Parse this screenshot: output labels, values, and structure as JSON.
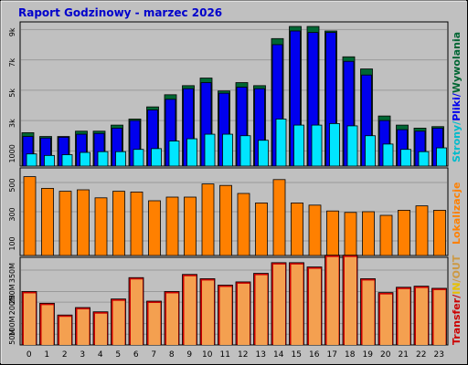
{
  "title": "Raport Godzinowy -  marzec 2026",
  "colors": {
    "background": "#c0c0c0",
    "plot_bg": "#c0c0c0",
    "grid": "#9a9a9a",
    "title": "#0000cc",
    "strony": "#006633",
    "pliki": "#0000ee",
    "wywolania": "#00e5ff",
    "lokalizacje": "#ff8000",
    "transfer": "#cc0000",
    "in": "#ffcc00",
    "out": "#cc9944",
    "transfer_fill": "#f4a050"
  },
  "chart_data": [
    {
      "type": "bar",
      "title": "",
      "categories": [
        "0",
        "1",
        "2",
        "3",
        "4",
        "5",
        "6",
        "7",
        "8",
        "9",
        "10",
        "11",
        "12",
        "13",
        "14",
        "15",
        "16",
        "17",
        "18",
        "19",
        "20",
        "21",
        "22",
        "23"
      ],
      "y_ticks": [
        "1000",
        "3k",
        "5k",
        "7k",
        "9k"
      ],
      "ylim": [
        0,
        9500
      ],
      "legend": [
        "Strony",
        "Pliki",
        "Wywolania"
      ],
      "legend_separator": "/",
      "legend_position": "right-vertical",
      "series": [
        {
          "name": "Strony",
          "values": [
            2200,
            1950,
            1950,
            2300,
            2300,
            2700,
            3100,
            3900,
            4700,
            5300,
            5800,
            4950,
            5500,
            5300,
            8400,
            9200,
            9200,
            8900,
            7200,
            6400,
            3300,
            2700,
            2500,
            2600
          ]
        },
        {
          "name": "Pliki",
          "values": [
            1950,
            1850,
            1900,
            2100,
            2150,
            2500,
            3000,
            3700,
            4400,
            5100,
            5500,
            4800,
            5200,
            5100,
            8000,
            8900,
            8800,
            8800,
            6900,
            6000,
            3000,
            2400,
            2300,
            2500
          ]
        },
        {
          "name": "Wywolania",
          "values": [
            800,
            700,
            750,
            900,
            950,
            950,
            1100,
            1150,
            1650,
            1800,
            2100,
            2100,
            2000,
            1700,
            3100,
            2700,
            2700,
            2800,
            2650,
            2000,
            1450,
            1100,
            950,
            1200
          ]
        }
      ]
    },
    {
      "type": "bar",
      "title": "",
      "categories": [
        "0",
        "1",
        "2",
        "3",
        "4",
        "5",
        "6",
        "7",
        "8",
        "9",
        "10",
        "11",
        "12",
        "13",
        "14",
        "15",
        "16",
        "17",
        "18",
        "19",
        "20",
        "21",
        "22",
        "23"
      ],
      "y_ticks": [
        "100",
        "300",
        "500"
      ],
      "ylim": [
        0,
        600
      ],
      "legend": [
        "Lokalizacje"
      ],
      "legend_position": "right-vertical",
      "series": [
        {
          "name": "Lokalizacje",
          "values": [
            540,
            460,
            440,
            450,
            395,
            440,
            435,
            375,
            400,
            400,
            490,
            480,
            425,
            360,
            520,
            360,
            345,
            305,
            295,
            300,
            275,
            310,
            340,
            310
          ]
        }
      ]
    },
    {
      "type": "bar",
      "title": "",
      "categories": [
        "0",
        "1",
        "2",
        "3",
        "4",
        "5",
        "6",
        "7",
        "8",
        "9",
        "10",
        "11",
        "12",
        "13",
        "14",
        "15",
        "16",
        "17",
        "18",
        "19",
        "20",
        "21",
        "22",
        "23"
      ],
      "y_ticks": [
        "50M",
        "100M",
        "200M",
        "250M",
        "350M"
      ],
      "ylim": [
        0,
        410
      ],
      "legend": [
        "Transfer",
        "IN",
        "OUT"
      ],
      "legend_separator": "/",
      "legend_position": "right-vertical",
      "series": [
        {
          "name": "Transfer",
          "values": [
            250,
            195,
            140,
            175,
            155,
            215,
            315,
            205,
            250,
            330,
            310,
            280,
            295,
            335,
            385,
            385,
            365,
            420,
            420,
            310,
            245,
            270,
            275,
            265
          ]
        }
      ]
    }
  ]
}
